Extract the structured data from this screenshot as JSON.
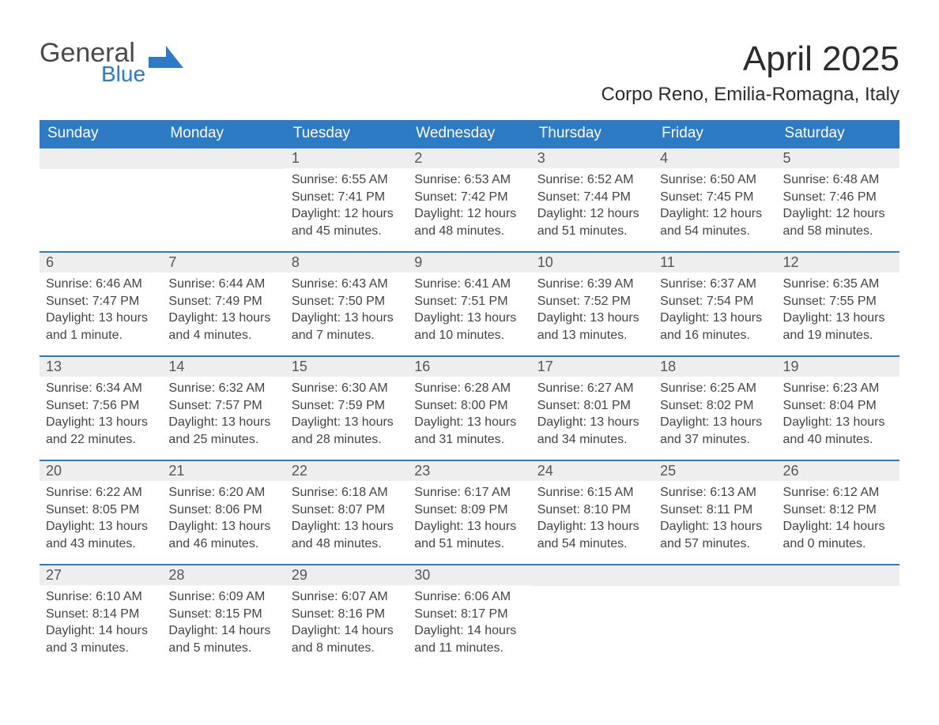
{
  "logo": {
    "word1": "General",
    "word2": "Blue",
    "icon_color": "#2d7bc4",
    "text_gray": "#4a4a4a"
  },
  "title": "April 2025",
  "location": "Corpo Reno, Emilia-Romagna, Italy",
  "colors": {
    "header_bg": "#2d7bc4",
    "header_text": "#ffffff",
    "daynum_bg": "#eeeeee",
    "daynum_text": "#555555",
    "body_text": "#444444",
    "week_border": "#2d7bc4",
    "page_bg": "#ffffff"
  },
  "weekdays": [
    "Sunday",
    "Monday",
    "Tuesday",
    "Wednesday",
    "Thursday",
    "Friday",
    "Saturday"
  ],
  "weeks": [
    [
      {
        "empty": true
      },
      {
        "empty": true
      },
      {
        "n": "1",
        "sunrise": "Sunrise: 6:55 AM",
        "sunset": "Sunset: 7:41 PM",
        "daylight": "Daylight: 12 hours and 45 minutes."
      },
      {
        "n": "2",
        "sunrise": "Sunrise: 6:53 AM",
        "sunset": "Sunset: 7:42 PM",
        "daylight": "Daylight: 12 hours and 48 minutes."
      },
      {
        "n": "3",
        "sunrise": "Sunrise: 6:52 AM",
        "sunset": "Sunset: 7:44 PM",
        "daylight": "Daylight: 12 hours and 51 minutes."
      },
      {
        "n": "4",
        "sunrise": "Sunrise: 6:50 AM",
        "sunset": "Sunset: 7:45 PM",
        "daylight": "Daylight: 12 hours and 54 minutes."
      },
      {
        "n": "5",
        "sunrise": "Sunrise: 6:48 AM",
        "sunset": "Sunset: 7:46 PM",
        "daylight": "Daylight: 12 hours and 58 minutes."
      }
    ],
    [
      {
        "n": "6",
        "sunrise": "Sunrise: 6:46 AM",
        "sunset": "Sunset: 7:47 PM",
        "daylight": "Daylight: 13 hours and 1 minute."
      },
      {
        "n": "7",
        "sunrise": "Sunrise: 6:44 AM",
        "sunset": "Sunset: 7:49 PM",
        "daylight": "Daylight: 13 hours and 4 minutes."
      },
      {
        "n": "8",
        "sunrise": "Sunrise: 6:43 AM",
        "sunset": "Sunset: 7:50 PM",
        "daylight": "Daylight: 13 hours and 7 minutes."
      },
      {
        "n": "9",
        "sunrise": "Sunrise: 6:41 AM",
        "sunset": "Sunset: 7:51 PM",
        "daylight": "Daylight: 13 hours and 10 minutes."
      },
      {
        "n": "10",
        "sunrise": "Sunrise: 6:39 AM",
        "sunset": "Sunset: 7:52 PM",
        "daylight": "Daylight: 13 hours and 13 minutes."
      },
      {
        "n": "11",
        "sunrise": "Sunrise: 6:37 AM",
        "sunset": "Sunset: 7:54 PM",
        "daylight": "Daylight: 13 hours and 16 minutes."
      },
      {
        "n": "12",
        "sunrise": "Sunrise: 6:35 AM",
        "sunset": "Sunset: 7:55 PM",
        "daylight": "Daylight: 13 hours and 19 minutes."
      }
    ],
    [
      {
        "n": "13",
        "sunrise": "Sunrise: 6:34 AM",
        "sunset": "Sunset: 7:56 PM",
        "daylight": "Daylight: 13 hours and 22 minutes."
      },
      {
        "n": "14",
        "sunrise": "Sunrise: 6:32 AM",
        "sunset": "Sunset: 7:57 PM",
        "daylight": "Daylight: 13 hours and 25 minutes."
      },
      {
        "n": "15",
        "sunrise": "Sunrise: 6:30 AM",
        "sunset": "Sunset: 7:59 PM",
        "daylight": "Daylight: 13 hours and 28 minutes."
      },
      {
        "n": "16",
        "sunrise": "Sunrise: 6:28 AM",
        "sunset": "Sunset: 8:00 PM",
        "daylight": "Daylight: 13 hours and 31 minutes."
      },
      {
        "n": "17",
        "sunrise": "Sunrise: 6:27 AM",
        "sunset": "Sunset: 8:01 PM",
        "daylight": "Daylight: 13 hours and 34 minutes."
      },
      {
        "n": "18",
        "sunrise": "Sunrise: 6:25 AM",
        "sunset": "Sunset: 8:02 PM",
        "daylight": "Daylight: 13 hours and 37 minutes."
      },
      {
        "n": "19",
        "sunrise": "Sunrise: 6:23 AM",
        "sunset": "Sunset: 8:04 PM",
        "daylight": "Daylight: 13 hours and 40 minutes."
      }
    ],
    [
      {
        "n": "20",
        "sunrise": "Sunrise: 6:22 AM",
        "sunset": "Sunset: 8:05 PM",
        "daylight": "Daylight: 13 hours and 43 minutes."
      },
      {
        "n": "21",
        "sunrise": "Sunrise: 6:20 AM",
        "sunset": "Sunset: 8:06 PM",
        "daylight": "Daylight: 13 hours and 46 minutes."
      },
      {
        "n": "22",
        "sunrise": "Sunrise: 6:18 AM",
        "sunset": "Sunset: 8:07 PM",
        "daylight": "Daylight: 13 hours and 48 minutes."
      },
      {
        "n": "23",
        "sunrise": "Sunrise: 6:17 AM",
        "sunset": "Sunset: 8:09 PM",
        "daylight": "Daylight: 13 hours and 51 minutes."
      },
      {
        "n": "24",
        "sunrise": "Sunrise: 6:15 AM",
        "sunset": "Sunset: 8:10 PM",
        "daylight": "Daylight: 13 hours and 54 minutes."
      },
      {
        "n": "25",
        "sunrise": "Sunrise: 6:13 AM",
        "sunset": "Sunset: 8:11 PM",
        "daylight": "Daylight: 13 hours and 57 minutes."
      },
      {
        "n": "26",
        "sunrise": "Sunrise: 6:12 AM",
        "sunset": "Sunset: 8:12 PM",
        "daylight": "Daylight: 14 hours and 0 minutes."
      }
    ],
    [
      {
        "n": "27",
        "sunrise": "Sunrise: 6:10 AM",
        "sunset": "Sunset: 8:14 PM",
        "daylight": "Daylight: 14 hours and 3 minutes."
      },
      {
        "n": "28",
        "sunrise": "Sunrise: 6:09 AM",
        "sunset": "Sunset: 8:15 PM",
        "daylight": "Daylight: 14 hours and 5 minutes."
      },
      {
        "n": "29",
        "sunrise": "Sunrise: 6:07 AM",
        "sunset": "Sunset: 8:16 PM",
        "daylight": "Daylight: 14 hours and 8 minutes."
      },
      {
        "n": "30",
        "sunrise": "Sunrise: 6:06 AM",
        "sunset": "Sunset: 8:17 PM",
        "daylight": "Daylight: 14 hours and 11 minutes."
      },
      {
        "empty": true
      },
      {
        "empty": true
      },
      {
        "empty": true
      }
    ]
  ]
}
